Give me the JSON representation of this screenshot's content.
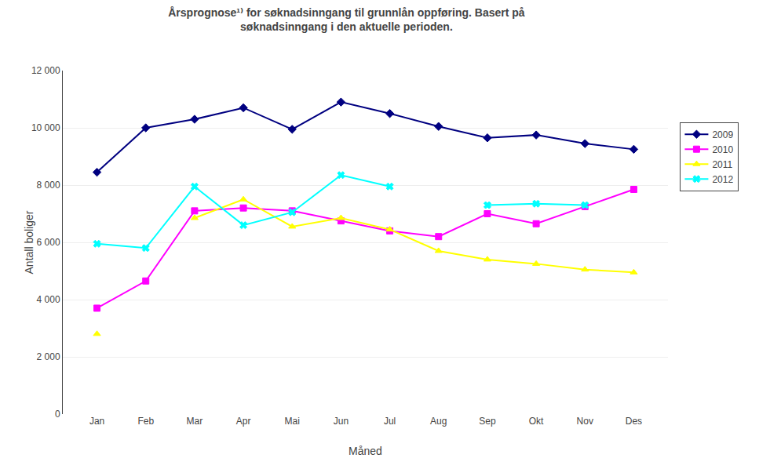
{
  "chart_data": {
    "type": "line",
    "title": "Årsprognose¹⁾ for søknadsinngang til grunnlån oppføring. Basert på\nsøknadsinngang i den aktuelle perioden.",
    "x_label": "Måned",
    "y_label": "Antall boliger",
    "categories": [
      "Jan",
      "Feb",
      "Mar",
      "Apr",
      "Mai",
      "Jun",
      "Jul",
      "Aug",
      "Sep",
      "Okt",
      "Nov",
      "Des"
    ],
    "series": [
      {
        "name": "2009",
        "color": "#000080",
        "marker": "diamond",
        "values": [
          8450,
          10000,
          10300,
          10700,
          9950,
          10900,
          10500,
          10050,
          9650,
          9750,
          9450,
          9250
        ]
      },
      {
        "name": "2010",
        "color": "#FF00FF",
        "marker": "square",
        "values": [
          3700,
          4650,
          7100,
          7200,
          7100,
          6750,
          6400,
          6200,
          7000,
          6650,
          7250,
          7850
        ]
      },
      {
        "name": "2011",
        "color": "#FFFF00",
        "marker": "triangle-up",
        "values": [
          2800,
          null,
          6850,
          7500,
          6550,
          6850,
          6450,
          5700,
          5400,
          5250,
          5050,
          4950
        ]
      },
      {
        "name": "2012",
        "color": "#00FFFF",
        "marker": "x",
        "values": [
          5950,
          5800,
          7950,
          6600,
          7050,
          8350,
          7950,
          null,
          7300,
          7350,
          7300,
          null
        ]
      }
    ],
    "ylim": [
      0,
      12000
    ],
    "yticks": [
      0,
      {
        "value": 2000,
        "label": "2 000"
      },
      {
        "value": 4000,
        "label": "4 000"
      },
      {
        "value": 6000,
        "label": "6 000"
      },
      {
        "value": 8000,
        "label": "8 000"
      },
      {
        "value": 10000,
        "label": "10 000"
      },
      {
        "value": 12000,
        "label": "12 000"
      }
    ],
    "grid": true,
    "legend": "right"
  }
}
